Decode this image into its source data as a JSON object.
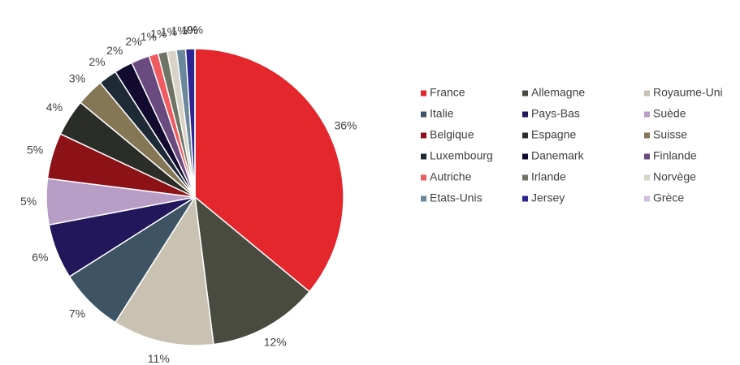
{
  "chart_data": {
    "type": "pie",
    "categories": [
      "France",
      "Allemagne",
      "Royaume-Uni",
      "Italie",
      "Pays-Bas",
      "Suède",
      "Belgique",
      "Espagne",
      "Suisse",
      "Luxembourg",
      "Danemark",
      "Finlande",
      "Autriche",
      "Irlande",
      "Norvège",
      "Etats-Unis",
      "Jersey",
      "Grèce"
    ],
    "values": [
      36,
      12,
      11,
      7,
      6,
      5,
      5,
      4,
      3,
      2,
      2,
      2,
      1,
      1,
      1,
      1,
      1,
      0
    ],
    "value_labels": [
      "36%",
      "12%",
      "11%",
      "7%",
      "6%",
      "5%",
      "5%",
      "4%",
      "3%",
      "2%",
      "2%",
      "2%",
      "1%",
      "1%",
      "1%",
      "1%",
      "1%",
      "0%"
    ],
    "colors": [
      "#e4262d",
      "#4a4b40",
      "#c9c2b2",
      "#3e5363",
      "#22175a",
      "#b89dc7",
      "#8d1218",
      "#2b2d28",
      "#857656",
      "#1f2a37",
      "#120b2f",
      "#6b4a80",
      "#ee5b60",
      "#6f7465",
      "#d8d3c6",
      "#6a879c",
      "#2d2590",
      "#d2bedd"
    ],
    "legend": "right"
  }
}
